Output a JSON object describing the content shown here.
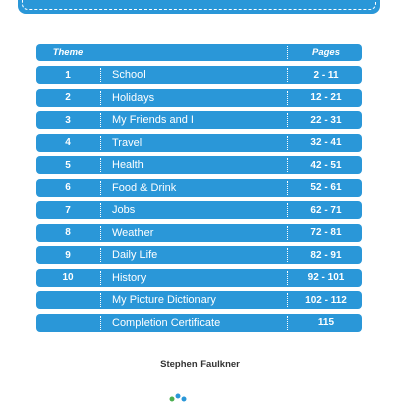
{
  "header": {
    "theme_label": "Theme",
    "pages_label": "Pages"
  },
  "rows": [
    {
      "num": "1",
      "name": "School",
      "pages": "2 - 11"
    },
    {
      "num": "2",
      "name": "Holidays",
      "pages": "12 - 21"
    },
    {
      "num": "3",
      "name": "My Friends and I",
      "pages": "22 - 31"
    },
    {
      "num": "4",
      "name": "Travel",
      "pages": "32 - 41"
    },
    {
      "num": "5",
      "name": "Health",
      "pages": "42 - 51"
    },
    {
      "num": "6",
      "name": "Food & Drink",
      "pages": "52 - 61"
    },
    {
      "num": "7",
      "name": "Jobs",
      "pages": "62 - 71"
    },
    {
      "num": "8",
      "name": "Weather",
      "pages": "72 - 81"
    },
    {
      "num": "9",
      "name": "Daily Life",
      "pages": "82 - 91"
    },
    {
      "num": "10",
      "name": "History",
      "pages": "92 - 101"
    },
    {
      "num": "",
      "name": "My Picture Dictionary",
      "pages": "102 - 112"
    },
    {
      "num": "",
      "name": "Completion Certificate",
      "pages": "115"
    }
  ],
  "author": "Stephen Faulkner",
  "colors": {
    "accent": "#2a97d8"
  }
}
